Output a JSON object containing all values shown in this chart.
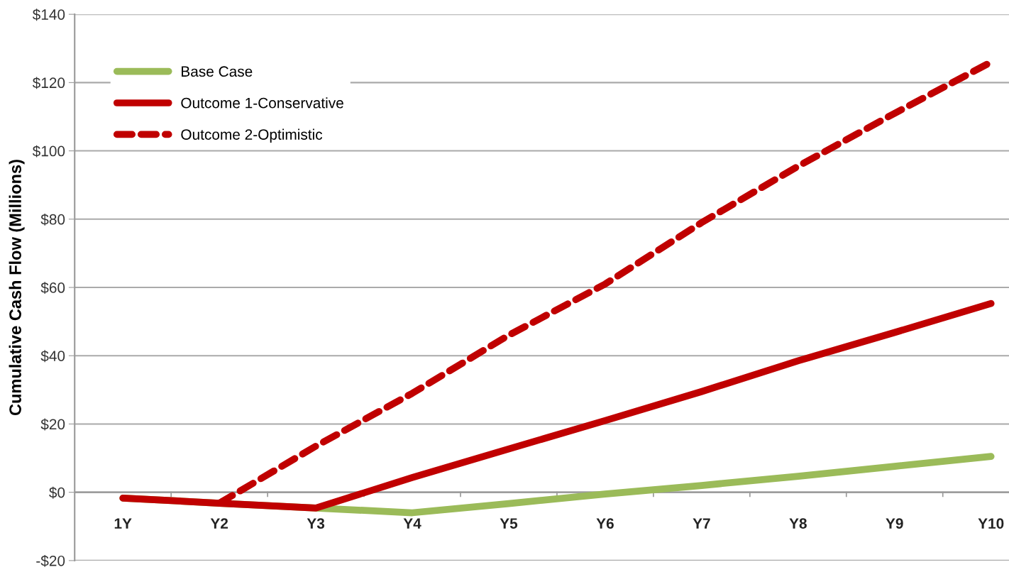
{
  "chart_data": {
    "type": "line",
    "ylabel": "Cumulative Cash Flow (Millions)",
    "categories": [
      "1Y",
      "Y2",
      "Y3",
      "Y4",
      "Y5",
      "Y6",
      "Y7",
      "Y8",
      "Y9",
      "Y10"
    ],
    "series": [
      {
        "name": "Base Case",
        "color": "#9bbb59",
        "line_style": "solid",
        "values": [
          -1.7,
          -3.2,
          -4.6,
          -6,
          -3.3,
          -0.5,
          2,
          4.7,
          7.6,
          10.5
        ]
      },
      {
        "name": "Outcome 1-Conservative",
        "color": "#c00000",
        "line_style": "solid",
        "values": [
          -1.7,
          -3.2,
          -4.6,
          4.3,
          12.7,
          21,
          29.5,
          38.5,
          46.8,
          55.3
        ]
      },
      {
        "name": "Outcome 2-Optimistic",
        "color": "#c00000",
        "line_style": "dashed",
        "values": [
          null,
          -3.2,
          13.5,
          29,
          46,
          61,
          79,
          95.5,
          111,
          126
        ]
      }
    ],
    "ylim": [
      -20,
      140
    ],
    "yticks": [
      {
        "value": -20,
        "label": "-$20"
      },
      {
        "value": 0,
        "label": "$0"
      },
      {
        "value": 20,
        "label": "$20"
      },
      {
        "value": 40,
        "label": "$40"
      },
      {
        "value": 60,
        "label": "$60"
      },
      {
        "value": 80,
        "label": "$80"
      },
      {
        "value": 100,
        "label": "$100"
      },
      {
        "value": 120,
        "label": "$120"
      },
      {
        "value": 140,
        "label": "$140"
      }
    ],
    "grid": "y",
    "legend": "top left",
    "marker": "none"
  }
}
